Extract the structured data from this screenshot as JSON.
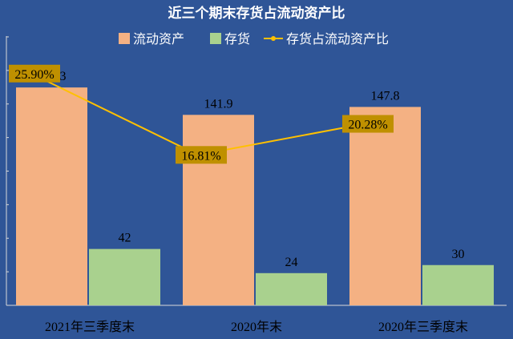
{
  "chart_data": {
    "type": "bar",
    "title": "近三个期末存货占流动资产比",
    "categories": [
      "2021年三季度末",
      "2020年末",
      "2020年三季度末"
    ],
    "series": [
      {
        "name": "流动资产",
        "type": "bar",
        "axis": "left",
        "values": [
          162.3,
          141.9,
          147.8
        ],
        "labels": [
          "162.3",
          "141.9",
          "147.8"
        ]
      },
      {
        "name": "存货",
        "type": "bar",
        "axis": "left",
        "values": [
          42,
          24,
          30
        ],
        "labels": [
          "42",
          "24",
          "30"
        ]
      },
      {
        "name": "存货占流动资产比",
        "type": "line",
        "axis": "right",
        "values": [
          25.9,
          16.81,
          20.28
        ],
        "labels": [
          "25.90%",
          "16.81%",
          "20.28%"
        ]
      }
    ],
    "ylim": [
      0,
      200
    ],
    "y2lim": [
      0,
      30
    ],
    "legend_position": "top",
    "grid": false,
    "colors": {
      "background": "#2F5597",
      "bar1": "#F4B183",
      "bar2": "#A9D18E",
      "line": "#FFC000",
      "label_box": "#BF9000",
      "text": "#FFFFFF",
      "data_label": "#000000",
      "axis": "#D9D9D9"
    }
  }
}
